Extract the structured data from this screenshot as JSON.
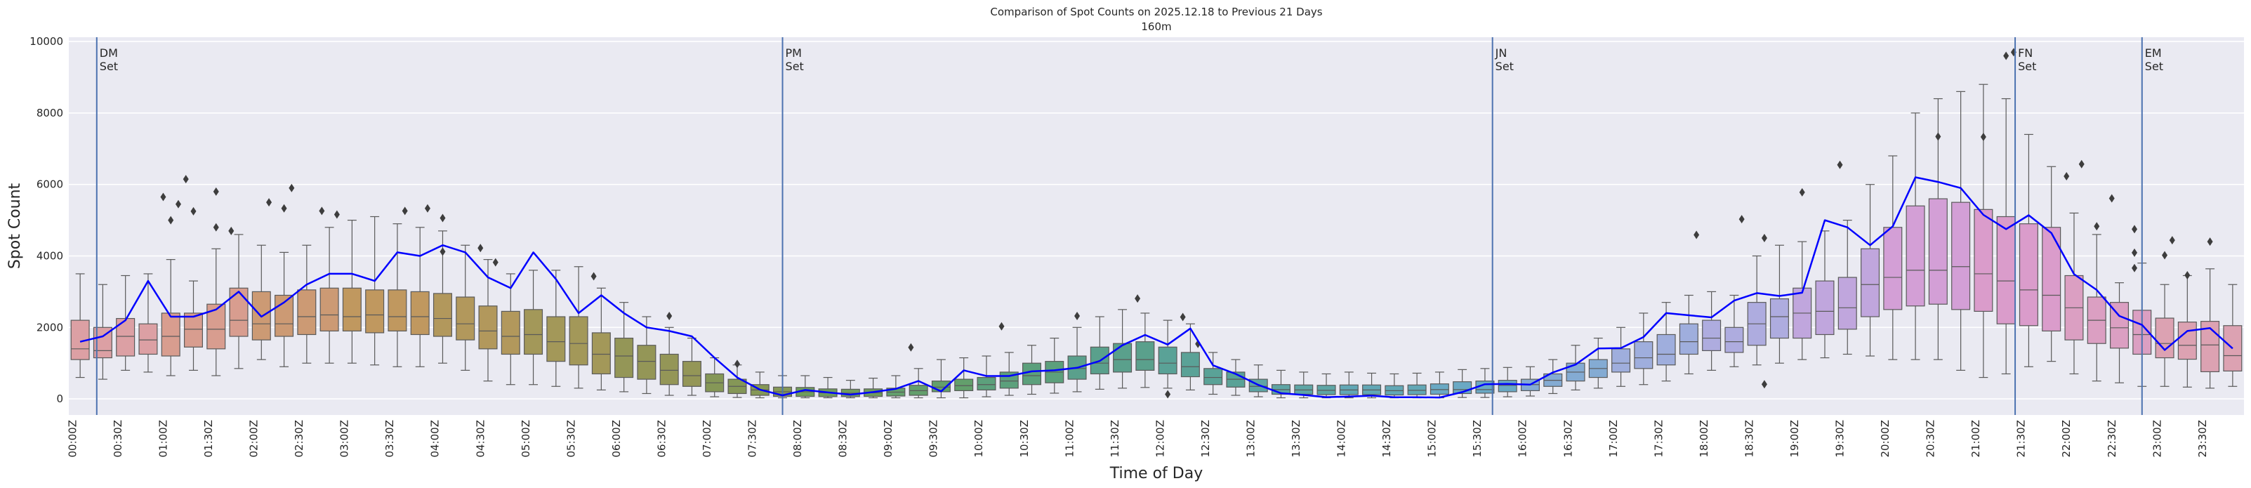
{
  "chart_data": {
    "type": "box",
    "title": "Comparison of Spot Counts on 2025.12.18 to Previous 21 Days",
    "subtitle": "160m",
    "xlabel": "Time of Day",
    "ylabel": "Spot Count",
    "ylim": [
      -450,
      10120
    ],
    "y_ticks": [
      "0",
      "2000",
      "4000",
      "6000",
      "8000",
      "10000"
    ],
    "grid": true,
    "background": "#eaeaf2",
    "line_color": "#0000ff",
    "event_line_color": "#4c72b0",
    "x_tick_labels": [
      "00:00Z",
      "00:30Z",
      "01:00Z",
      "01:30Z",
      "02:00Z",
      "02:30Z",
      "03:00Z",
      "03:30Z",
      "04:00Z",
      "04:30Z",
      "05:00Z",
      "05:30Z",
      "06:00Z",
      "06:30Z",
      "07:00Z",
      "07:30Z",
      "08:00Z",
      "08:30Z",
      "09:00Z",
      "09:30Z",
      "10:00Z",
      "10:30Z",
      "11:00Z",
      "11:30Z",
      "12:00Z",
      "12:30Z",
      "13:00Z",
      "13:30Z",
      "14:00Z",
      "14:30Z",
      "15:00Z",
      "15:30Z",
      "16:00Z",
      "16:30Z",
      "17:00Z",
      "17:30Z",
      "18:00Z",
      "18:30Z",
      "19:00Z",
      "19:30Z",
      "20:00Z",
      "20:30Z",
      "21:00Z",
      "21:30Z",
      "22:00Z",
      "22:30Z",
      "23:00Z",
      "23:30Z"
    ],
    "interval_minutes": 15,
    "box_colors_by_hour": [
      "#dca0a4",
      "#d89d8f",
      "#cc9a74",
      "#c0985f",
      "#b2985c",
      "#a39859",
      "#949657",
      "#859757",
      "#6f9c5d",
      "#639f6c",
      "#5ca07c",
      "#5aa08c",
      "#5aa297",
      "#5ea5a5",
      "#62a7b5",
      "#6aa9c4",
      "#84abd3",
      "#9faedd",
      "#aeacdf",
      "#c0a6dd",
      "#d39fd6",
      "#da9ccb",
      "#db9fc2",
      "#dca2b2"
    ],
    "boxes": {
      "whisker_low": [
        600,
        550,
        800,
        750,
        650,
        800,
        650,
        850,
        1100,
        900,
        1000,
        1000,
        1000,
        950,
        900,
        900,
        1000,
        800,
        500,
        400,
        400,
        350,
        300,
        250,
        200,
        150,
        100,
        100,
        60,
        40,
        30,
        30,
        30,
        30,
        30,
        30,
        30,
        30,
        30,
        30,
        60,
        100,
        130,
        160,
        200,
        270,
        300,
        320,
        300,
        250,
        130,
        100,
        60,
        30,
        30,
        30,
        30,
        30,
        30,
        30,
        30,
        40,
        40,
        60,
        80,
        150,
        250,
        300,
        350,
        400,
        500,
        700,
        800,
        900,
        950,
        1000,
        1100,
        1150,
        1250,
        1200,
        1100,
        1100,
        1100,
        800,
        600,
        700,
        900,
        1050,
        700,
        500,
        450,
        350,
        350,
        330,
        300,
        350
      ],
      "q1": [
        1100,
        1150,
        1200,
        1250,
        1200,
        1450,
        1400,
        1750,
        1650,
        1750,
        1800,
        1900,
        1900,
        1850,
        1900,
        1800,
        1750,
        1650,
        1400,
        1250,
        1250,
        1050,
        950,
        700,
        600,
        550,
        400,
        350,
        200,
        150,
        100,
        70,
        70,
        65,
        65,
        70,
        80,
        100,
        200,
        230,
        250,
        300,
        400,
        450,
        550,
        700,
        750,
        800,
        700,
        620,
        400,
        330,
        200,
        130,
        130,
        120,
        120,
        120,
        110,
        120,
        130,
        150,
        160,
        200,
        230,
        350,
        500,
        600,
        750,
        850,
        950,
        1250,
        1350,
        1300,
        1500,
        1700,
        1700,
        1800,
        1950,
        2300,
        2500,
        2600,
        2650,
        2500,
        2450,
        2100,
        2050,
        1900,
        1650,
        1550,
        1420,
        1250,
        1150,
        1110,
        760,
        780
      ],
      "median": [
        1400,
        1350,
        1750,
        1650,
        1750,
        1950,
        1950,
        2200,
        2100,
        2100,
        2300,
        2350,
        2300,
        2350,
        2300,
        2300,
        2250,
        2100,
        1900,
        1750,
        1800,
        1600,
        1550,
        1250,
        1200,
        1050,
        800,
        650,
        450,
        350,
        250,
        200,
        200,
        170,
        160,
        170,
        190,
        230,
        330,
        370,
        400,
        500,
        650,
        750,
        850,
        1000,
        1100,
        1100,
        1000,
        900,
        600,
        550,
        350,
        260,
        250,
        240,
        250,
        250,
        230,
        240,
        260,
        260,
        260,
        380,
        400,
        520,
        750,
        850,
        1000,
        1150,
        1250,
        1600,
        1700,
        1600,
        2100,
        2300,
        2400,
        2450,
        2550,
        3200,
        3400,
        3600,
        3600,
        3700,
        3500,
        3300,
        3050,
        2900,
        2550,
        2200,
        1990,
        1800,
        1550,
        1500,
        1510,
        1210
      ],
      "q3": [
        2200,
        2000,
        2250,
        2100,
        2400,
        2400,
        2650,
        3100,
        3000,
        2900,
        3050,
        3100,
        3100,
        3050,
        3050,
        3000,
        2950,
        2850,
        2600,
        2450,
        2500,
        2300,
        2300,
        1850,
        1700,
        1500,
        1250,
        1050,
        700,
        550,
        400,
        330,
        320,
        280,
        270,
        280,
        300,
        380,
        500,
        550,
        600,
        750,
        1000,
        1050,
        1200,
        1450,
        1550,
        1600,
        1450,
        1300,
        850,
        750,
        550,
        400,
        390,
        380,
        390,
        390,
        370,
        390,
        420,
        480,
        500,
        520,
        550,
        700,
        1000,
        1100,
        1400,
        1600,
        1800,
        2100,
        2200,
        2000,
        2700,
        2800,
        3100,
        3300,
        3400,
        4200,
        4800,
        5400,
        5600,
        5500,
        5300,
        5100,
        4900,
        4800,
        3450,
        2850,
        2700,
        2480,
        2260,
        2150,
        2170,
        2050
      ],
      "whisker_high": [
        3500,
        3200,
        3450,
        3500,
        3900,
        3300,
        4200,
        4600,
        4300,
        4100,
        4300,
        4800,
        5000,
        5100,
        4900,
        4800,
        4700,
        4300,
        3900,
        3500,
        3600,
        3600,
        3700,
        3100,
        2700,
        2300,
        2000,
        1700,
        1150,
        950,
        750,
        650,
        650,
        600,
        520,
        580,
        650,
        850,
        1100,
        1150,
        1200,
        1300,
        1500,
        1700,
        2000,
        2300,
        2500,
        2400,
        2200,
        2100,
        1300,
        1100,
        950,
        800,
        750,
        700,
        750,
        720,
        700,
        720,
        750,
        820,
        850,
        880,
        900,
        1100,
        1500,
        1700,
        2000,
        2400,
        2700,
        2900,
        3000,
        2900,
        4000,
        4300,
        4400,
        4700,
        5000,
        6000,
        6800,
        8000,
        8400,
        8600,
        8800,
        8400,
        7400,
        6500,
        5200,
        4600,
        3250,
        3800,
        3200,
        3450,
        3640,
        3200
      ]
    },
    "line": [
      1600,
      1750,
      2200,
      3300,
      2300,
      2300,
      2500,
      3000,
      2300,
      2700,
      3200,
      3500,
      3500,
      3300,
      4100,
      4000,
      4300,
      4100,
      3400,
      3100,
      4100,
      3350,
      2400,
      2900,
      2400,
      2000,
      1900,
      1750,
      1150,
      600,
      260,
      100,
      250,
      180,
      120,
      190,
      280,
      500,
      210,
      800,
      640,
      640,
      770,
      800,
      870,
      1060,
      1500,
      1790,
      1520,
      1970,
      940,
      700,
      390,
      160,
      110,
      50,
      65,
      90,
      45,
      45,
      40,
      190,
      410,
      420,
      400,
      740,
      960,
      1410,
      1420,
      1730,
      2400,
      2340,
      2280,
      2750,
      2960,
      2880,
      2970,
      5000,
      4800,
      4300,
      4830,
      6200,
      6070,
      5900,
      5150,
      4750,
      5140,
      4640,
      3490,
      3050,
      2320,
      2070,
      1370,
      1900,
      1980,
      1410
    ],
    "outliers": [
      [
        "01:00",
        5650
      ],
      [
        "01:05",
        5000
      ],
      [
        "01:10",
        5450
      ],
      [
        "01:15",
        6150
      ],
      [
        "01:20",
        5250
      ],
      [
        "01:35",
        5800
      ],
      [
        "01:35",
        4800
      ],
      [
        "01:45",
        4700
      ],
      [
        "02:10",
        5500
      ],
      [
        "02:20",
        5330
      ],
      [
        "02:25",
        5900
      ],
      [
        "02:45",
        5260
      ],
      [
        "02:55",
        5160
      ],
      [
        "03:40",
        5260
      ],
      [
        "03:55",
        5330
      ],
      [
        "04:05",
        5060
      ],
      [
        "04:05",
        4120
      ],
      [
        "04:30",
        4220
      ],
      [
        "04:40",
        3820
      ],
      [
        "05:45",
        3430
      ],
      [
        "06:35",
        2320
      ],
      [
        "07:20",
        980
      ],
      [
        "09:15",
        1440
      ],
      [
        "10:15",
        2030
      ],
      [
        "11:05",
        2320
      ],
      [
        "11:45",
        2810
      ],
      [
        "12:05",
        130
      ],
      [
        "12:15",
        2290
      ],
      [
        "12:25",
        1540
      ],
      [
        "17:55",
        4590
      ],
      [
        "18:25",
        5030
      ],
      [
        "18:40",
        4500
      ],
      [
        "18:40",
        410
      ],
      [
        "19:05",
        5780
      ],
      [
        "19:30",
        6550
      ],
      [
        "20:35",
        7340
      ],
      [
        "21:05",
        7330
      ],
      [
        "21:20",
        9600
      ],
      [
        "21:25",
        9700
      ],
      [
        "22:00",
        6230
      ],
      [
        "22:10",
        6570
      ],
      [
        "22:20",
        4830
      ],
      [
        "22:30",
        5610
      ],
      [
        "22:45",
        4750
      ],
      [
        "22:45",
        4090
      ],
      [
        "22:45",
        3660
      ],
      [
        "23:05",
        4020
      ],
      [
        "23:10",
        4440
      ],
      [
        "23:20",
        3460
      ],
      [
        "23:35",
        4400
      ]
    ],
    "events": [
      {
        "label": "DM",
        "sub": "Set",
        "time": "00:16"
      },
      {
        "label": "PM",
        "sub": "Set",
        "time": "07:50"
      },
      {
        "label": "JN",
        "sub": "Set",
        "time": "15:40"
      },
      {
        "label": "FN",
        "sub": "Set",
        "time": "21:26"
      },
      {
        "label": "EM",
        "sub": "Set",
        "time": "22:50"
      }
    ]
  }
}
